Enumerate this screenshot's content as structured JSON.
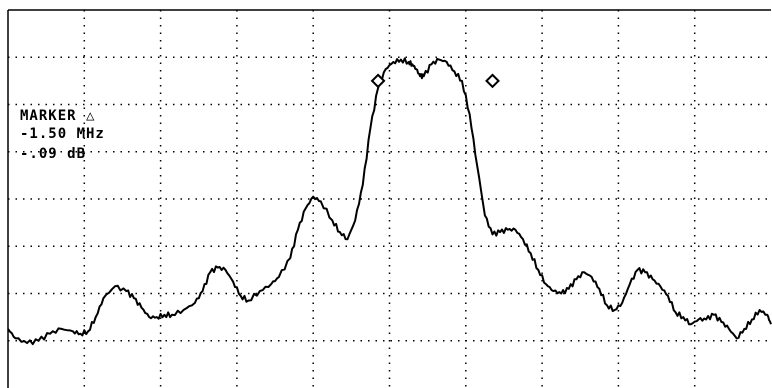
{
  "marker": {
    "title": "MARKER △",
    "frequency": "-1.50 MHz",
    "level": "-.09 dB"
  },
  "chart_data": {
    "type": "line",
    "title": "",
    "xlabel": "",
    "ylabel": "",
    "grid": true,
    "x_divisions": 10,
    "y_divisions": 8,
    "xlim": [
      0,
      10
    ],
    "ylim": [
      0,
      8
    ],
    "series": [
      {
        "x": [
          0.0,
          0.1,
          0.25,
          0.4,
          0.55,
          0.7,
          0.85,
          0.95,
          1.05,
          1.15,
          1.25,
          1.4,
          1.55,
          1.65,
          1.75,
          1.85,
          1.95,
          2.05,
          2.15,
          2.3,
          2.45,
          2.55,
          2.65,
          2.75,
          2.85,
          2.95,
          3.05,
          3.15,
          3.3,
          3.45,
          3.55,
          3.7,
          3.8,
          3.9,
          4.0,
          4.1,
          4.25,
          4.35,
          4.45,
          4.55,
          4.65,
          4.75,
          4.85,
          4.95,
          5.05,
          5.15,
          5.25,
          5.3,
          5.35,
          5.4,
          5.45,
          5.55,
          5.65,
          5.75,
          5.85,
          5.95,
          6.05,
          6.15,
          6.25,
          6.35,
          6.45,
          6.55,
          6.65,
          6.75,
          6.85,
          6.95,
          7.05,
          7.15,
          7.25,
          7.35,
          7.45,
          7.55,
          7.65,
          7.75,
          7.85,
          7.95,
          8.05,
          8.15,
          8.25,
          8.35,
          8.45,
          8.55,
          8.65,
          8.75,
          8.85,
          8.95,
          9.05,
          9.15,
          9.25,
          9.35,
          9.45,
          9.55,
          9.65,
          9.75,
          9.85,
          9.95,
          10.0
        ],
        "y": [
          1.25,
          1.05,
          0.95,
          1.0,
          1.15,
          1.25,
          1.2,
          1.15,
          1.2,
          1.5,
          1.9,
          2.15,
          2.05,
          1.9,
          1.7,
          1.5,
          1.5,
          1.55,
          1.55,
          1.65,
          1.8,
          2.05,
          2.45,
          2.55,
          2.5,
          2.25,
          1.95,
          1.85,
          2.05,
          2.2,
          2.35,
          2.75,
          3.35,
          3.8,
          4.05,
          3.95,
          3.55,
          3.3,
          3.15,
          3.55,
          4.3,
          5.5,
          6.35,
          6.75,
          6.9,
          6.95,
          6.9,
          6.85,
          6.75,
          6.6,
          6.6,
          6.85,
          6.95,
          6.9,
          6.7,
          6.5,
          5.8,
          4.7,
          3.65,
          3.25,
          3.3,
          3.35,
          3.35,
          3.15,
          2.85,
          2.5,
          2.2,
          2.05,
          2.0,
          2.1,
          2.3,
          2.45,
          2.35,
          2.1,
          1.75,
          1.65,
          1.8,
          2.2,
          2.5,
          2.45,
          2.3,
          2.15,
          1.95,
          1.6,
          1.5,
          1.35,
          1.45,
          1.45,
          1.55,
          1.4,
          1.25,
          1.05,
          1.25,
          1.45,
          1.65,
          1.55,
          1.35
        ]
      }
    ],
    "markers": [
      {
        "x": 4.85,
        "y": 6.5,
        "shape": "diamond"
      },
      {
        "x": 6.35,
        "y": 6.5,
        "shape": "diamond"
      }
    ]
  }
}
